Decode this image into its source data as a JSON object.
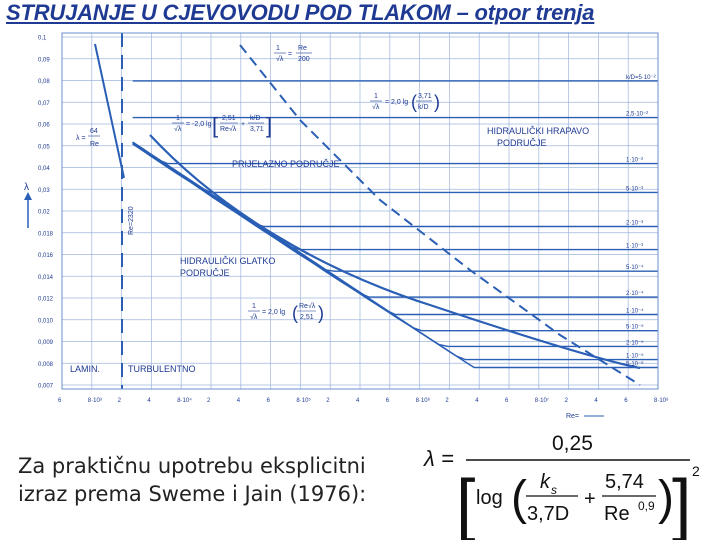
{
  "title": "STRUJANJE U CJEVOVODU POD TLAKOM – otpor trenja",
  "chart": {
    "y_ticks": [
      "0,1",
      "0,09",
      "0,08",
      "0,07",
      "0,06",
      "0,05",
      "0,04",
      "0,03",
      "0,02",
      "0,018",
      "0,016",
      "0,014",
      "0,012",
      "0,010",
      "0,009",
      "0,008",
      "0,007"
    ],
    "x_ticks": [
      "6",
      "8·10³",
      "2",
      "4",
      "8·10⁴",
      "2",
      "4",
      "6",
      "8·10⁵",
      "2",
      "4",
      "6",
      "8·10⁶",
      "2",
      "4",
      "6",
      "8·10⁷",
      "2",
      "4",
      "6",
      "8·10⁸"
    ],
    "re_label": "Re=",
    "lambda_label": "λ",
    "curve_labels": [
      "k/D=5·10⁻²",
      "2,5·10⁻²",
      "1·10⁻²",
      "5·10⁻³",
      "2·10⁻³",
      "1·10⁻³",
      "5·10⁻⁴",
      "2·10⁻⁴",
      "1·10⁻⁴",
      "5·10⁻⁵",
      "2·10⁻⁵",
      "1·10⁻⁵",
      "5·10⁻⁶"
    ],
    "regions": {
      "rough": [
        "HIDRAULIČKI HRAPAVO",
        "PODRUČJE"
      ],
      "transition": "PRIJELAZNO PODRUČJE",
      "smooth": [
        "HIDRAULIČKI GLATKO",
        "PODRUČJE"
      ],
      "laminar": "LAMIN.",
      "turbulent": "TURBULENTNO",
      "critical": "Re=2320"
    },
    "eq_laminar": [
      "λ =",
      "64",
      "Re"
    ],
    "eq_lambda_root": [
      "1",
      "√λ"
    ],
    "eq_rough": [
      "1",
      "√λ",
      "= 2,0 lg",
      "3,71",
      "k/D"
    ],
    "eq_colebrook": [
      "1",
      "√λ",
      "= -2,0 lg",
      "2,51",
      "Re√λ",
      "+",
      "k/D",
      "3,71"
    ],
    "eq_smooth": [
      "1",
      "√λ",
      "= 2,0 lg",
      "Re√λ",
      "2,51"
    ],
    "eq_boundary": [
      "1",
      "√λ",
      "=",
      "Re",
      "200"
    ],
    "series": [
      {
        "rough": 0.0715,
        "transition_re": 3000
      },
      {
        "rough": 0.054,
        "transition_re": 6000
      },
      {
        "rough": 0.038,
        "transition_re": 15000
      },
      {
        "rough": 0.0305,
        "transition_re": 30000
      },
      {
        "rough": 0.0235,
        "transition_re": 80000
      },
      {
        "rough": 0.0197,
        "transition_re": 160000
      },
      {
        "rough": 0.0167,
        "transition_re": 320000
      },
      {
        "rough": 0.0137,
        "transition_re": 800000
      },
      {
        "rough": 0.012,
        "transition_re": 1600000
      },
      {
        "rough": 0.0106,
        "transition_re": 3200000
      },
      {
        "rough": 0.0094,
        "transition_re": 8000000
      },
      {
        "rough": 0.0085,
        "transition_re": 16000000
      },
      {
        "rough": 0.008,
        "transition_re": 32000000
      }
    ]
  },
  "caption": [
    "Za praktičnu upotrebu eksplicitni",
    "izraz prema Sweme i Jain (1976):"
  ],
  "formula": {
    "lhs": "λ =",
    "numerator": "0,25",
    "log": "log",
    "t1_num": "k",
    "t1_sub": "s",
    "t1_den": "3,7D",
    "plus": "+",
    "t2_num": "5,74",
    "t2_den": "Re",
    "t2_exp": "0,9",
    "power": "2"
  }
}
